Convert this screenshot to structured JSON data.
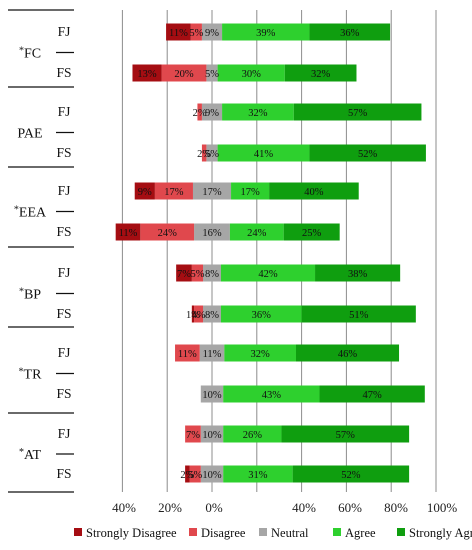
{
  "chart_data": {
    "type": "bar",
    "orientation": "horizontal",
    "stacked": "diverging",
    "xlim": [
      -40,
      100
    ],
    "x_ticks": [
      "40%",
      "20%",
      "0%",
      "40%",
      "60%",
      "80%",
      "100%"
    ],
    "grid": true,
    "legend_position": "bottom",
    "colors": {
      "Strongly Disagree": "#a50d12",
      "Disagree": "#e0484d",
      "Neutral": "#a6a6a6",
      "Agree": "#2ed02e",
      "Strongly Agree": "#0f9e0f"
    },
    "groups": [
      {
        "name": "FC",
        "marker": "*",
        "rows": [
          {
            "label": "FJ",
            "values": {
              "Strongly Disagree": 11,
              "Disagree": 5,
              "Neutral": 9,
              "Agree": 39,
              "Strongly Agree": 36
            },
            "labels": {
              "Strongly Disagree": "11%",
              "Disagree": "5%",
              "Neutral": "9%",
              "Agree": "39%",
              "Strongly Agree": "36%"
            }
          },
          {
            "label": "FS",
            "values": {
              "Strongly Disagree": 13,
              "Disagree": 20,
              "Neutral": 5,
              "Agree": 30,
              "Strongly Agree": 32
            },
            "labels": {
              "Strongly Disagree": "13%",
              "Disagree": "20%",
              "Neutral": "5%",
              "Agree": "30%",
              "Strongly Agree": "32%"
            }
          }
        ]
      },
      {
        "name": "PAE",
        "marker": "",
        "rows": [
          {
            "label": "FJ",
            "values": {
              "Strongly Disagree": 0,
              "Disagree": 2,
              "Neutral": 9,
              "Agree": 32,
              "Strongly Agree": 57
            },
            "labels": {
              "Disagree": "2%",
              "Neutral": "9%",
              "Agree": "32%",
              "Strongly Agree": "57%"
            }
          },
          {
            "label": "FS",
            "values": {
              "Strongly Disagree": 0,
              "Disagree": 2,
              "Neutral": 5,
              "Agree": 41,
              "Strongly Agree": 52
            },
            "labels": {
              "Disagree": "2%",
              "Neutral": "5%",
              "Agree": "41%",
              "Strongly Agree": "52%"
            }
          }
        ]
      },
      {
        "name": "EEA",
        "marker": "*",
        "rows": [
          {
            "label": "FJ",
            "values": {
              "Strongly Disagree": 9,
              "Disagree": 17,
              "Neutral": 17,
              "Agree": 17,
              "Strongly Agree": 40
            },
            "labels": {
              "Strongly Disagree": "9%",
              "Disagree": "17%",
              "Neutral": "17%",
              "Agree": "17%",
              "Strongly Agree": "40%"
            }
          },
          {
            "label": "FS",
            "values": {
              "Strongly Disagree": 11,
              "Disagree": 24,
              "Neutral": 16,
              "Agree": 24,
              "Strongly Agree": 25
            },
            "labels": {
              "Strongly Disagree": "11%",
              "Disagree": "24%",
              "Neutral": "16%",
              "Agree": "24%",
              "Strongly Agree": "25%"
            }
          }
        ]
      },
      {
        "name": "BP",
        "marker": "*",
        "rows": [
          {
            "label": "FJ",
            "values": {
              "Strongly Disagree": 7,
              "Disagree": 5,
              "Neutral": 8,
              "Agree": 42,
              "Strongly Agree": 38
            },
            "labels": {
              "Strongly Disagree": "7%",
              "Disagree": "5%",
              "Neutral": "8%",
              "Agree": "42%",
              "Strongly Agree": "38%"
            }
          },
          {
            "label": "FS",
            "values": {
              "Strongly Disagree": 1,
              "Disagree": 4,
              "Neutral": 8,
              "Agree": 36,
              "Strongly Agree": 51
            },
            "labels": {
              "Strongly Disagree": "1%",
              "Disagree": "4%",
              "Neutral": "8%",
              "Agree": "36%",
              "Strongly Agree": "51%"
            }
          }
        ]
      },
      {
        "name": "TR",
        "marker": "*",
        "rows": [
          {
            "label": "FJ",
            "values": {
              "Strongly Disagree": 0,
              "Disagree": 11,
              "Neutral": 11,
              "Agree": 32,
              "Strongly Agree": 46
            },
            "labels": {
              "Disagree": "11%",
              "Neutral": "11%",
              "Agree": "32%",
              "Strongly Agree": "46%"
            }
          },
          {
            "label": "FS",
            "values": {
              "Strongly Disagree": 0,
              "Disagree": 0,
              "Neutral": 10,
              "Agree": 43,
              "Strongly Agree": 47
            },
            "labels": {
              "Neutral": "10%",
              "Agree": "43%",
              "Strongly Agree": "47%"
            }
          }
        ]
      },
      {
        "name": "AT",
        "marker": "*",
        "rows": [
          {
            "label": "FJ",
            "values": {
              "Strongly Disagree": 0,
              "Disagree": 7,
              "Neutral": 10,
              "Agree": 26,
              "Strongly Agree": 57
            },
            "labels": {
              "Disagree": "7%",
              "Neutral": "10%",
              "Agree": "26%",
              "Strongly Agree": "57%"
            }
          },
          {
            "label": "FS",
            "values": {
              "Strongly Disagree": 2,
              "Disagree": 5,
              "Neutral": 10,
              "Agree": 31,
              "Strongly Agree": 52
            },
            "labels": {
              "Strongly Disagree": "2%",
              "Disagree": "5%",
              "Neutral": "10%",
              "Agree": "31%",
              "Strongly Agree": "52%"
            }
          }
        ]
      }
    ],
    "legend": [
      "Strongly Disagree",
      "Disagree",
      "Neutral",
      "Agree",
      "Strongly Agree"
    ]
  }
}
